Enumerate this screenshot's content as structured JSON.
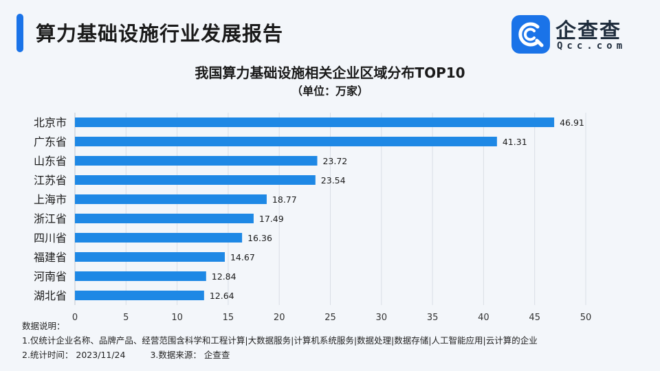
{
  "header": {
    "title": "算力基础设施行业发展报告",
    "accent_color": "#1a73e8"
  },
  "logo": {
    "name_cn": "企查查",
    "name_en": "Qcc.com",
    "icon": "qcc-logo-icon"
  },
  "chart_data": {
    "type": "bar",
    "orientation": "horizontal",
    "title": "我国算力基础设施相关企业区域分布TOP10",
    "subtitle": "（单位：万家）",
    "categories": [
      "北京市",
      "广东省",
      "山东省",
      "江苏省",
      "上海市",
      "浙江省",
      "四川省",
      "福建省",
      "河南省",
      "湖北省"
    ],
    "values": [
      46.91,
      41.31,
      23.72,
      23.54,
      18.77,
      17.49,
      16.36,
      14.67,
      12.84,
      12.64
    ],
    "value_labels": [
      "46.91",
      "41.31",
      "23.72",
      "23.54",
      "18.77",
      "17.49",
      "16.36",
      "14.67",
      "12.84",
      "12.64"
    ],
    "xlim": [
      0,
      50
    ],
    "xticks": [
      0,
      5,
      10,
      15,
      20,
      25,
      30,
      35,
      40,
      45,
      50
    ],
    "grid": true,
    "bar_color": "#1e88e5",
    "legend": "none"
  },
  "notes": {
    "heading": "数据说明：",
    "line1": "1.仅统计企业名称、品牌产品、经营范围含科学和工程计算|大数据服务|计算机系统服务|数据处理|数据存储|人工智能应用|云计算的企业",
    "line2a": "2.统计时间：  2023/11/24",
    "line2b": "3.数据来源：  企查查"
  }
}
